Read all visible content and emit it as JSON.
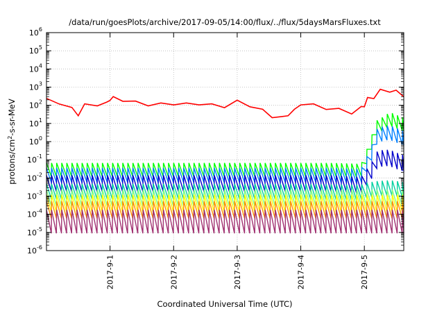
{
  "chart_data": {
    "type": "line",
    "title": "/data/run/goesPlots/archive/2017-09-05/14:00/flux/../flux/5daysMarsFluxes.txt",
    "xlabel": "Coordinated Universal Time (UTC)",
    "ylabel_parts": {
      "pre": "protons/cm",
      "sup": "2",
      "post": "-s-sr-MeV"
    },
    "y_scale": "log",
    "ylim_exp": [
      -6,
      6
    ],
    "y_tick_exponents": [
      -6,
      -5,
      -4,
      -3,
      -2,
      -1,
      0,
      1,
      2,
      3,
      4,
      5,
      6
    ],
    "y_tick_base": "10",
    "xlim_days": [
      0,
      5.62
    ],
    "x_ticks": [
      {
        "day": 1,
        "label": "2017-9-1"
      },
      {
        "day": 2,
        "label": "2017-9-2"
      },
      {
        "day": 3,
        "label": "2017-9-3"
      },
      {
        "day": 4,
        "label": "2017-9-4"
      },
      {
        "day": 5,
        "label": "2017-9-5"
      }
    ],
    "grid": true,
    "series": [
      {
        "color": "#ff0000",
        "log_values": [
          [
            0.0,
            2.3
          ],
          [
            0.2,
            2.15
          ],
          [
            0.4,
            1.8
          ],
          [
            0.5,
            1.5
          ],
          [
            0.6,
            2.0
          ],
          [
            0.8,
            2.05
          ],
          [
            0.95,
            2.1
          ],
          [
            1.0,
            2.35
          ],
          [
            1.05,
            2.4
          ],
          [
            1.2,
            2.3
          ],
          [
            1.4,
            2.15
          ],
          [
            1.6,
            2.05
          ],
          [
            1.8,
            2.05
          ],
          [
            2.0,
            2.1
          ],
          [
            2.2,
            2.05
          ],
          [
            2.4,
            2.1
          ],
          [
            2.6,
            2.0
          ],
          [
            2.8,
            1.95
          ],
          [
            3.0,
            2.2
          ],
          [
            3.2,
            2.0
          ],
          [
            3.4,
            1.7
          ],
          [
            3.55,
            1.4
          ],
          [
            3.7,
            1.3
          ],
          [
            3.8,
            1.5
          ],
          [
            3.9,
            1.7
          ],
          [
            4.0,
            2.1
          ],
          [
            4.2,
            2.0
          ],
          [
            4.4,
            1.85
          ],
          [
            4.6,
            1.75
          ],
          [
            4.8,
            1.6
          ],
          [
            4.95,
            1.85
          ],
          [
            5.0,
            2.0
          ],
          [
            5.05,
            2.35
          ],
          [
            5.15,
            2.45
          ],
          [
            5.25,
            2.8
          ],
          [
            5.4,
            2.8
          ],
          [
            5.5,
            2.75
          ],
          [
            5.62,
            2.55
          ]
        ]
      },
      {
        "color": "#00ff00",
        "log_values": [
          [
            0.0,
            -1.55
          ],
          [
            0.5,
            -1.55
          ],
          [
            1.0,
            -1.55
          ],
          [
            1.5,
            -1.55
          ],
          [
            2.0,
            -1.55
          ],
          [
            2.5,
            -1.55
          ],
          [
            3.0,
            -1.55
          ],
          [
            3.5,
            -1.55
          ],
          [
            4.0,
            -1.55
          ],
          [
            4.5,
            -1.55
          ],
          [
            4.95,
            -1.6
          ],
          [
            5.0,
            -1.2
          ],
          [
            5.1,
            -0.2
          ],
          [
            5.2,
            0.8
          ],
          [
            5.3,
            1.0
          ],
          [
            5.4,
            1.25
          ],
          [
            5.5,
            1.1
          ],
          [
            5.62,
            0.95
          ]
        ]
      },
      {
        "color": "#0080ff",
        "log_values": [
          [
            0.0,
            -1.85
          ],
          [
            0.5,
            -1.85
          ],
          [
            1.0,
            -1.85
          ],
          [
            1.5,
            -1.85
          ],
          [
            2.0,
            -1.85
          ],
          [
            2.5,
            -1.85
          ],
          [
            3.0,
            -1.85
          ],
          [
            3.5,
            -1.85
          ],
          [
            4.0,
            -1.85
          ],
          [
            4.5,
            -1.85
          ],
          [
            4.95,
            -1.9
          ],
          [
            5.0,
            -1.5
          ],
          [
            5.1,
            -0.8
          ],
          [
            5.2,
            0.3
          ],
          [
            5.3,
            0.45
          ],
          [
            5.4,
            0.5
          ],
          [
            5.5,
            0.35
          ],
          [
            5.62,
            0.2
          ]
        ]
      },
      {
        "color": "#0000cc",
        "log_values": [
          [
            0.0,
            -2.3
          ],
          [
            0.5,
            -2.3
          ],
          [
            1.0,
            -2.3
          ],
          [
            1.5,
            -2.3
          ],
          [
            2.0,
            -2.3
          ],
          [
            2.5,
            -2.3
          ],
          [
            3.0,
            -2.3
          ],
          [
            3.5,
            -2.3
          ],
          [
            4.0,
            -2.3
          ],
          [
            4.5,
            -2.3
          ],
          [
            4.95,
            -2.4
          ],
          [
            5.0,
            -2.1
          ],
          [
            5.1,
            -1.7
          ],
          [
            5.2,
            -1.0
          ],
          [
            5.3,
            -0.9
          ],
          [
            5.4,
            -0.9
          ],
          [
            5.5,
            -1.05
          ],
          [
            5.62,
            -1.2
          ]
        ]
      },
      {
        "color": "#00d0a0",
        "log_values": [
          [
            0.0,
            -2.75
          ],
          [
            1.0,
            -2.75
          ],
          [
            2.0,
            -2.75
          ],
          [
            3.0,
            -2.75
          ],
          [
            4.0,
            -2.75
          ],
          [
            4.95,
            -2.8
          ],
          [
            5.0,
            -2.7
          ],
          [
            5.2,
            -2.6
          ],
          [
            5.4,
            -2.55
          ],
          [
            5.62,
            -2.65
          ]
        ]
      },
      {
        "color": "#80ff80",
        "log_values": [
          [
            0.0,
            -3.1
          ],
          [
            1.0,
            -3.1
          ],
          [
            2.0,
            -3.1
          ],
          [
            3.0,
            -3.1
          ],
          [
            4.0,
            -3.1
          ],
          [
            5.0,
            -3.1
          ],
          [
            5.62,
            -3.1
          ]
        ]
      },
      {
        "color": "#ffff00",
        "log_values": [
          [
            0.0,
            -3.4
          ],
          [
            1.0,
            -3.4
          ],
          [
            2.0,
            -3.4
          ],
          [
            3.0,
            -3.4
          ],
          [
            4.0,
            -3.4
          ],
          [
            5.0,
            -3.4
          ],
          [
            5.62,
            -3.4
          ]
        ]
      },
      {
        "color": "#ff9000",
        "log_values": [
          [
            0.0,
            -3.75
          ],
          [
            1.0,
            -3.75
          ],
          [
            2.0,
            -3.75
          ],
          [
            3.0,
            -3.75
          ],
          [
            4.0,
            -3.75
          ],
          [
            5.0,
            -3.75
          ],
          [
            5.62,
            -3.75
          ]
        ]
      },
      {
        "color": "#a03070",
        "log_values": [
          [
            0.0,
            -4.4
          ],
          [
            1.0,
            -4.4
          ],
          [
            2.0,
            -4.4
          ],
          [
            3.0,
            -4.4
          ],
          [
            4.0,
            -4.4
          ],
          [
            5.0,
            -4.4
          ],
          [
            5.62,
            -4.4
          ]
        ]
      }
    ]
  }
}
